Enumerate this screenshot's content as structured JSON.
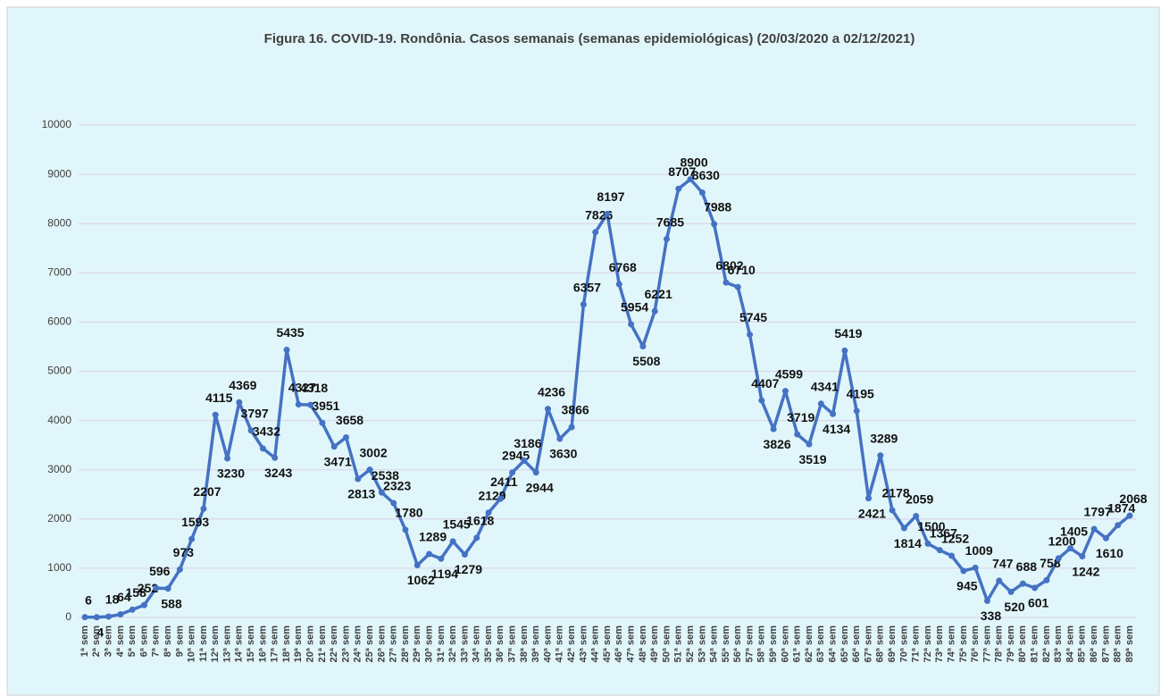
{
  "chart_data": {
    "type": "line",
    "title": "Figura 16. COVID-19. Rondônia. Casos semanais (semanas epidemiológicas) (20/03/2020 a 02/12/2021)",
    "categories": [
      "1ª sem",
      "2ª sem",
      "3ª sem",
      "4ª sem",
      "5ª sem",
      "6ª sem",
      "7ª sem",
      "8ª sem",
      "9ª sem",
      "10ª sem",
      "11ª sem",
      "12ª sem",
      "13ª sem",
      "14ª sem",
      "15ª sem",
      "16ª sem",
      "17ª sem",
      "18ª sem",
      "19ª sem",
      "20ª sem",
      "21ª sem",
      "22ª sem",
      "23ª sem",
      "24ª sem",
      "25ª sem",
      "26ª sem",
      "27ª sem",
      "28ª sem",
      "29ª sem",
      "30ª sem",
      "31ª sem",
      "32ª sem",
      "33ª sem",
      "34ª sem",
      "35ª sem",
      "36ª sem",
      "37ª sem",
      "38ª sem",
      "39ª sem",
      "40ª sem",
      "41ª sem",
      "42ª sem",
      "43ª sem",
      "44ª sem",
      "45ª sem",
      "46ª sem",
      "47ª sem",
      "48ª sem",
      "49ª sem",
      "50ª sem",
      "51ª sem",
      "52ª sem",
      "53ª sem",
      "54ª sem",
      "55ª sem",
      "56ª sem",
      "57ª sem",
      "58ª sem",
      "59ª sem",
      "60ª sem",
      "61ª sem",
      "62ª sem",
      "63ª sem",
      "64ª sem",
      "65ª sem",
      "66ª sem",
      "67ª sem",
      "68ª sem",
      "69ª sem",
      "70ª sem",
      "71ª sem",
      "72ª sem",
      "73ª sem",
      "74ª sem",
      "75ª sem",
      "76ª sem",
      "77ª sem",
      "78ª sem",
      "79ª sem",
      "80ª sem",
      "81ª sem",
      "82ª sem",
      "83ª sem",
      "84ª sem",
      "85ª sem",
      "86ª sem",
      "87ª sem",
      "88ª sem",
      "89ª sem"
    ],
    "values": [
      6,
      4,
      18,
      64,
      158,
      252,
      596,
      588,
      973,
      1593,
      2207,
      4115,
      3230,
      4369,
      3797,
      3432,
      3243,
      5435,
      4327,
      4318,
      3951,
      3471,
      3658,
      2813,
      3002,
      2538,
      2323,
      1780,
      1062,
      1289,
      1194,
      1545,
      1279,
      1618,
      2129,
      2411,
      2945,
      3186,
      2944,
      4236,
      3630,
      3866,
      6357,
      7826,
      8197,
      6768,
      5954,
      5508,
      6221,
      7685,
      8707,
      8900,
      8630,
      7988,
      6802,
      6710,
      5745,
      4407,
      3826,
      4599,
      3719,
      3519,
      4341,
      4134,
      5419,
      4195,
      2421,
      3289,
      2178,
      1814,
      2059,
      1500,
      1367,
      1252,
      945,
      1009,
      338,
      747,
      520,
      688,
      601,
      758,
      1200,
      1405,
      1242,
      1797,
      1610,
      1874,
      2068
    ],
    "color": "#4472c4",
    "ylim": [
      0,
      10000
    ],
    "yticks": [
      0,
      1000,
      2000,
      3000,
      4000,
      5000,
      6000,
      7000,
      8000,
      9000,
      10000
    ],
    "grid": true
  }
}
